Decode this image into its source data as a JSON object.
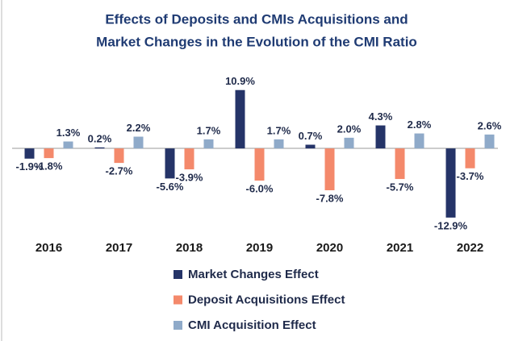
{
  "chart_data": {
    "type": "bar",
    "title": [
      "Effects of Deposits and CMIs Acquisitions and",
      "Market Changes in the Evolution of the CMI Ratio"
    ],
    "categories": [
      "2016",
      "2017",
      "2018",
      "2019",
      "2020",
      "2021",
      "2022"
    ],
    "series": [
      {
        "name": "Market Changes Effect",
        "color": "#253468",
        "values": [
          -1.9,
          0.2,
          -5.6,
          10.9,
          0.7,
          4.3,
          -12.9
        ],
        "value_labels": [
          "-1.9%",
          "0.2%",
          "-5.6%",
          "10.9%",
          "0.7%",
          "4.3%",
          "-12.9%"
        ]
      },
      {
        "name": "Deposit Acquisitions Effect",
        "color": "#f4896b",
        "values": [
          -1.8,
          -2.7,
          -3.9,
          -6.0,
          -7.8,
          -5.7,
          -3.7
        ],
        "value_labels": [
          "-1.8%",
          "-2.7%",
          "-3.9%",
          "-6.0%",
          "-7.8%",
          "-5.7%",
          "-3.7%"
        ]
      },
      {
        "name": "CMI Acquisition Effect",
        "color": "#8faac9",
        "values": [
          1.3,
          2.2,
          1.7,
          1.7,
          2.0,
          2.8,
          2.6
        ],
        "value_labels": [
          "1.3%",
          "2.2%",
          "1.7%",
          "1.7%",
          "2.0%",
          "2.8%",
          "2.6%"
        ]
      }
    ],
    "ylim": [
      -14,
      12
    ]
  }
}
